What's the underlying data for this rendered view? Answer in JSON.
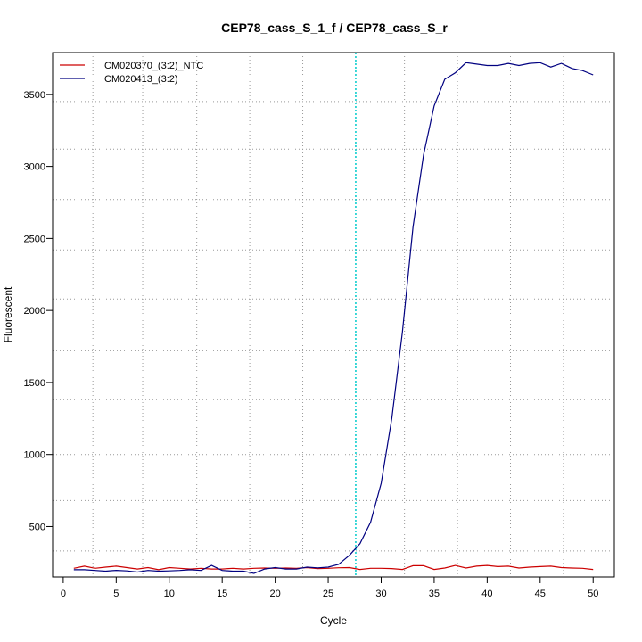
{
  "chart_data": {
    "type": "line",
    "title": "CEP78_cass_S_1_f / CEP78_cass_S_r",
    "xlabel": "Cycle",
    "ylabel": "Fluorescent",
    "xlim": [
      -1,
      52
    ],
    "ylim": [
      150,
      3790
    ],
    "xticks": [
      0,
      5,
      10,
      15,
      20,
      25,
      30,
      35,
      40,
      45,
      50
    ],
    "yticks": [
      500,
      1000,
      1500,
      2000,
      2500,
      3000,
      3500
    ],
    "grid": true,
    "x_grid": [
      2.8,
      7.5,
      12.6,
      17.6,
      22.6,
      27.6,
      32.2,
      37.2,
      42.2,
      47.2
    ],
    "y_grid": [
      330,
      680,
      1000,
      1380,
      1720,
      2080,
      2420,
      2770,
      3120,
      3450
    ],
    "threshold_cycle": 27.6,
    "threshold_color": "#00cccc",
    "legend_position": "top-left",
    "x": [
      1,
      2,
      3,
      4,
      5,
      6,
      7,
      8,
      9,
      10,
      11,
      12,
      13,
      14,
      15,
      16,
      17,
      18,
      19,
      20,
      21,
      22,
      23,
      24,
      25,
      26,
      27,
      28,
      29,
      30,
      31,
      32,
      33,
      34,
      35,
      36,
      37,
      38,
      39,
      40,
      41,
      42,
      43,
      44,
      45,
      46,
      47,
      48,
      49,
      50
    ],
    "series": [
      {
        "name": "CM020370_(3:2)_NTC",
        "color": "#cc0000",
        "values": [
          210,
          225,
          210,
          218,
          225,
          215,
          205,
          215,
          200,
          215,
          210,
          205,
          210,
          205,
          205,
          210,
          205,
          210,
          212,
          210,
          212,
          210,
          215,
          208,
          210,
          214,
          215,
          202,
          210,
          210,
          208,
          202,
          228,
          228,
          202,
          212,
          230,
          212,
          225,
          230,
          222,
          225,
          212,
          218,
          222,
          225,
          215,
          212,
          210,
          202
        ]
      },
      {
        "name": "CM020413_(3:2)",
        "color": "#000080",
        "values": [
          200,
          200,
          195,
          190,
          196,
          192,
          184,
          195,
          190,
          192,
          195,
          200,
          195,
          230,
          195,
          190,
          190,
          175,
          205,
          215,
          205,
          205,
          218,
          213,
          218,
          238,
          300,
          380,
          530,
          800,
          1250,
          1850,
          2580,
          3080,
          3420,
          3605,
          3650,
          3720,
          3710,
          3700,
          3700,
          3715,
          3700,
          3715,
          3720,
          3690,
          3715,
          3680,
          3665,
          3635
        ]
      }
    ]
  }
}
